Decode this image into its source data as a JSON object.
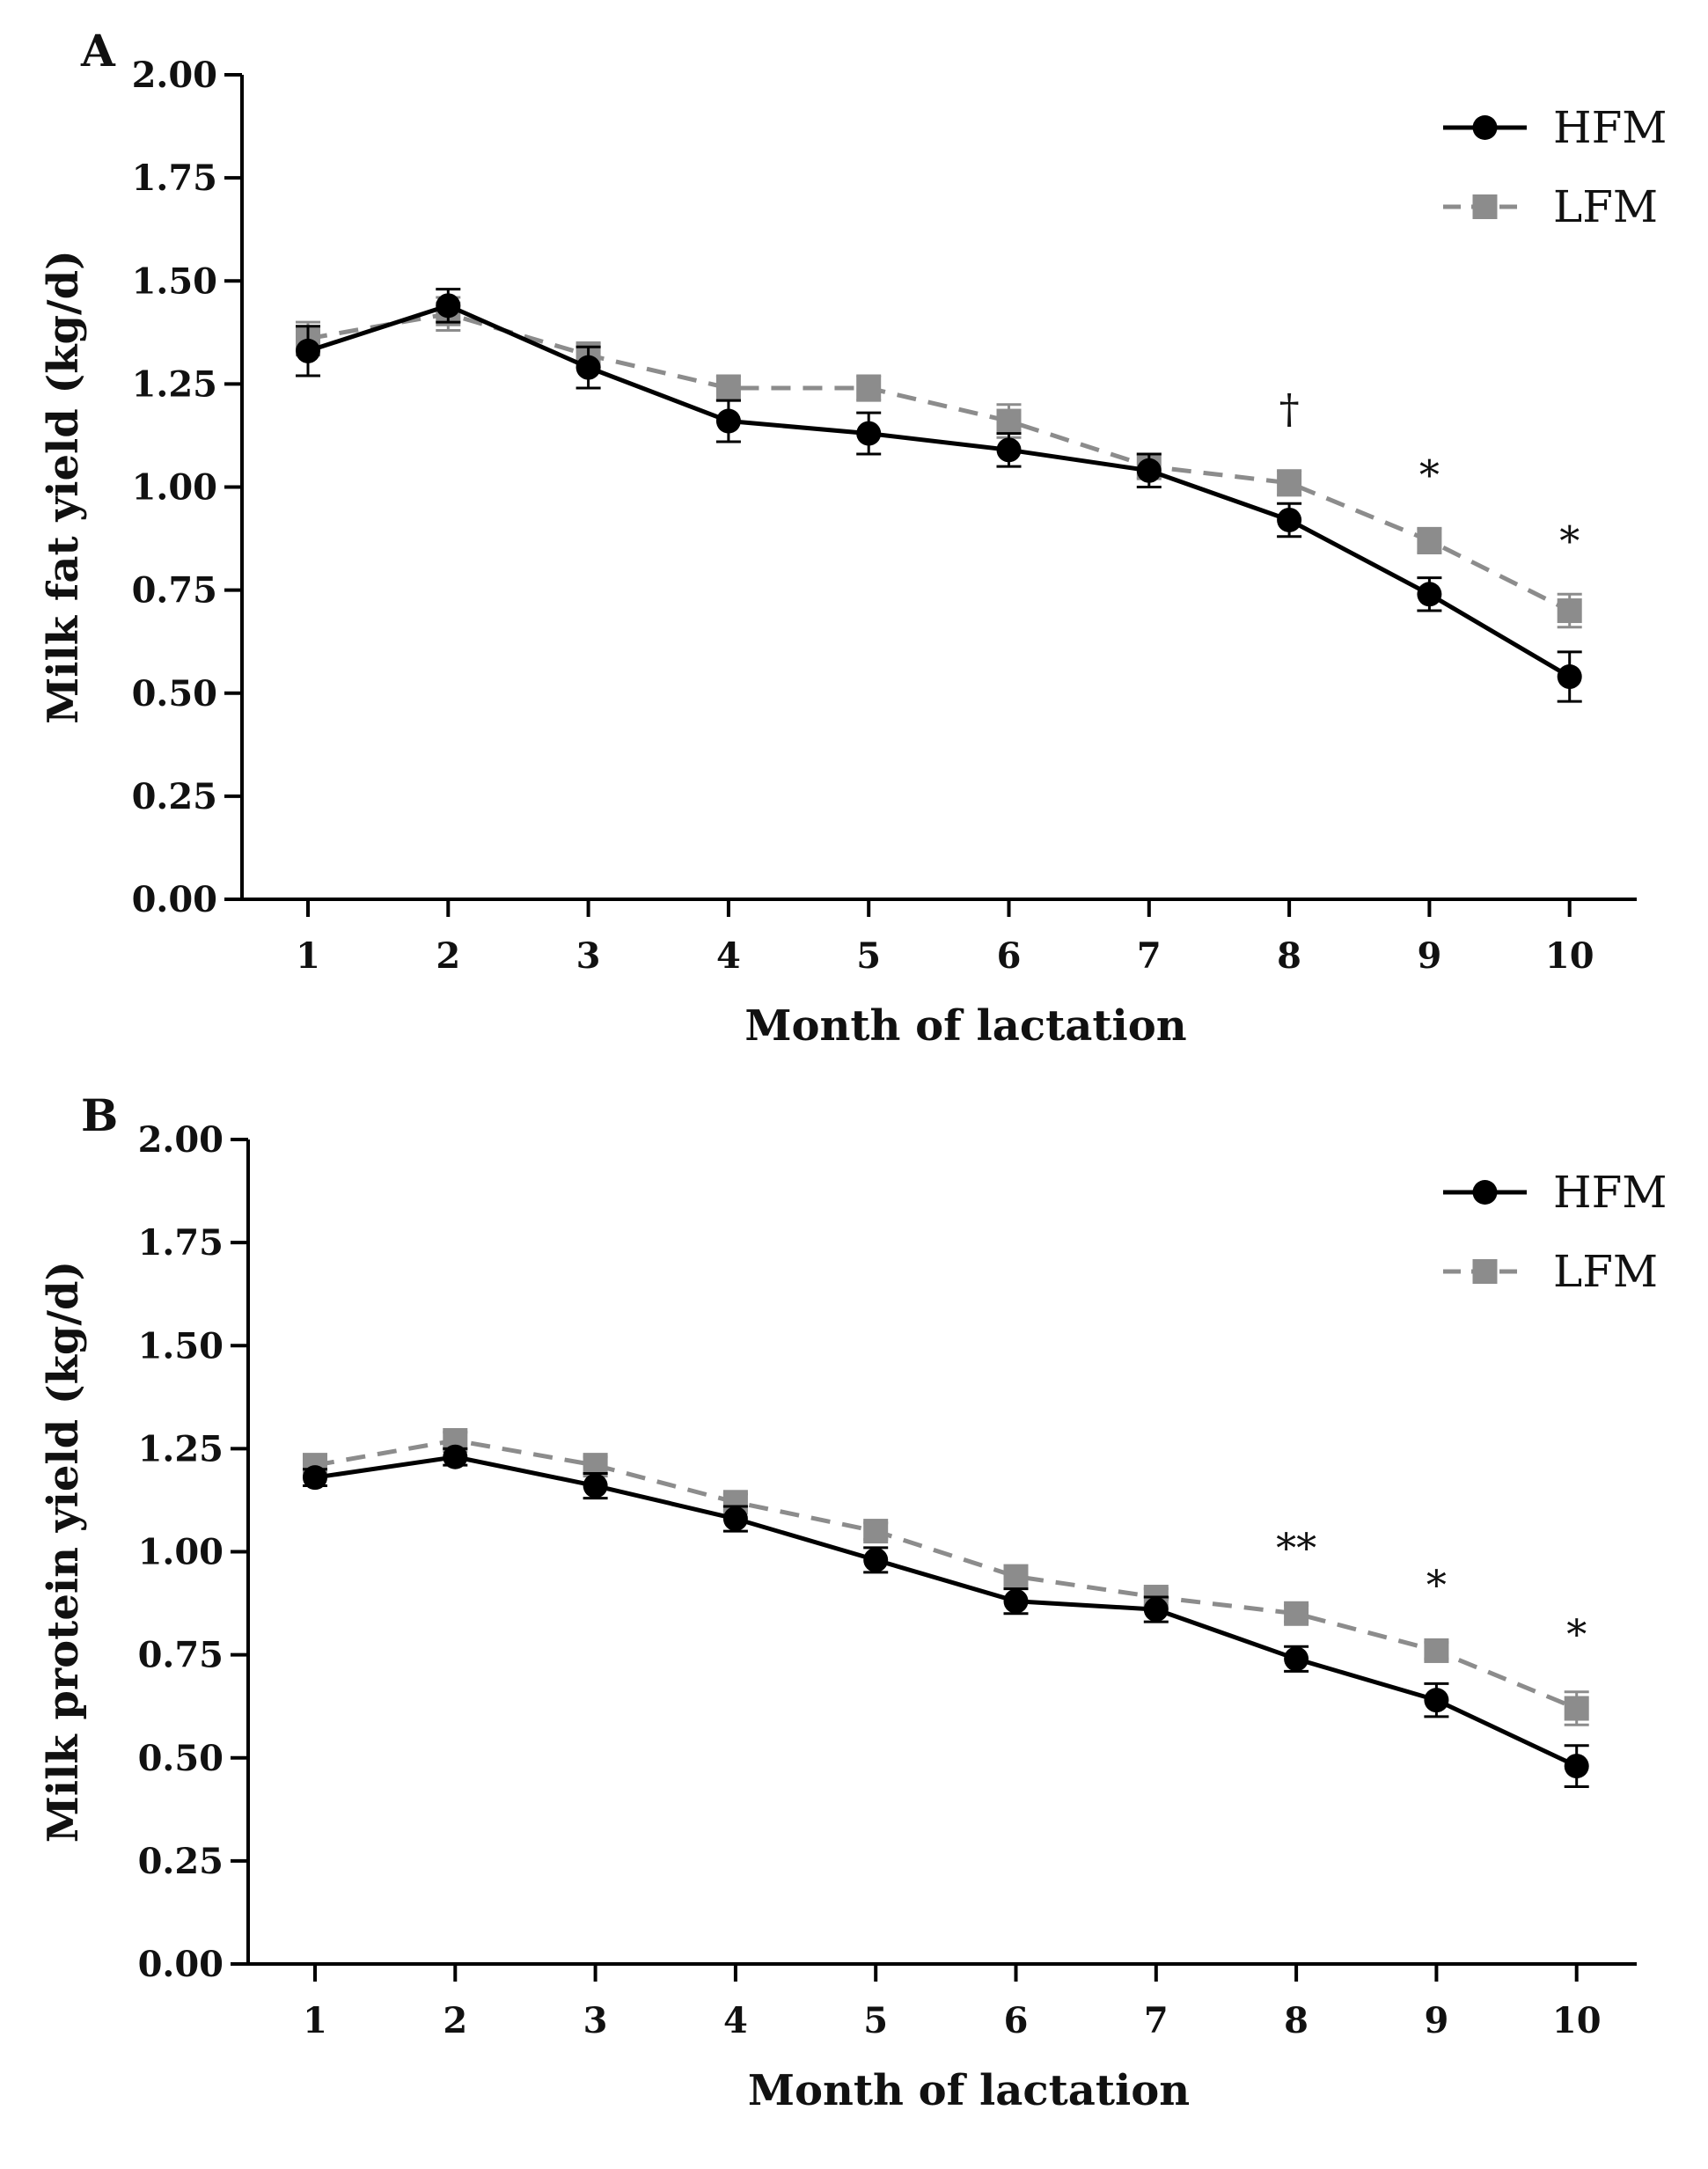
{
  "chart_data": [
    {
      "type": "line",
      "panel_label": "A",
      "xlabel": "Month of lactation",
      "ylabel": "Milk fat yield (kg/d)",
      "categories": [
        "1",
        "2",
        "3",
        "4",
        "5",
        "6",
        "7",
        "8",
        "9",
        "10"
      ],
      "x": [
        1,
        2,
        3,
        4,
        5,
        6,
        7,
        8,
        9,
        10
      ],
      "ylim": [
        0,
        2
      ],
      "yticks": [
        0,
        0.25,
        0.5,
        0.75,
        1.0,
        1.25,
        1.5,
        1.75,
        2.0
      ],
      "ytick_labels": [
        "0.00",
        "0.25",
        "0.50",
        "0.75",
        "1.00",
        "1.25",
        "1.50",
        "1.75",
        "2.00"
      ],
      "legend_position": "top-right",
      "series": [
        {
          "name": "HFM",
          "color": "#000000",
          "line_style": "solid",
          "marker": "circle",
          "values": [
            1.33,
            1.44,
            1.29,
            1.16,
            1.13,
            1.09,
            1.04,
            0.92,
            0.74,
            0.54
          ],
          "errors": [
            0.06,
            0.04,
            0.05,
            0.05,
            0.05,
            0.04,
            0.04,
            0.04,
            0.04,
            0.06
          ]
        },
        {
          "name": "LFM",
          "color": "#8c8c8c",
          "line_style": "dashed",
          "marker": "square",
          "values": [
            1.36,
            1.42,
            1.32,
            1.24,
            1.24,
            1.16,
            1.05,
            1.01,
            0.87,
            0.7
          ],
          "errors": [
            0.04,
            0.04,
            0.03,
            0.03,
            0.03,
            0.04,
            0.03,
            0.03,
            0.03,
            0.04
          ]
        }
      ],
      "annotations": [
        {
          "x": 8,
          "y": 1.19,
          "text": "†"
        },
        {
          "x": 9,
          "y": 1.03,
          "text": "*"
        },
        {
          "x": 10,
          "y": 0.87,
          "text": "*"
        }
      ]
    },
    {
      "type": "line",
      "panel_label": "B",
      "xlabel": "Month of lactation",
      "ylabel": "Milk protein yield (kg/d)",
      "categories": [
        "1",
        "2",
        "3",
        "4",
        "5",
        "6",
        "7",
        "8",
        "9",
        "10"
      ],
      "x": [
        1,
        2,
        3,
        4,
        5,
        6,
        7,
        8,
        9,
        10
      ],
      "ylim": [
        0,
        2
      ],
      "yticks": [
        0,
        0.25,
        0.5,
        0.75,
        1.0,
        1.25,
        1.5,
        1.75,
        2.0
      ],
      "ytick_labels": [
        "0.00",
        "0.25",
        "0.50",
        "0.75",
        "1.00",
        "1.25",
        "1.50",
        "1.75",
        "2.00"
      ],
      "legend_position": "top-right",
      "series": [
        {
          "name": "HFM",
          "color": "#000000",
          "line_style": "solid",
          "marker": "circle",
          "values": [
            1.18,
            1.23,
            1.16,
            1.08,
            0.98,
            0.88,
            0.86,
            0.74,
            0.64,
            0.48
          ],
          "errors": [
            0.02,
            0.02,
            0.03,
            0.03,
            0.03,
            0.03,
            0.03,
            0.03,
            0.04,
            0.05
          ]
        },
        {
          "name": "LFM",
          "color": "#8c8c8c",
          "line_style": "dashed",
          "marker": "square",
          "values": [
            1.21,
            1.27,
            1.21,
            1.12,
            1.05,
            0.94,
            0.89,
            0.85,
            0.76,
            0.62
          ],
          "errors": [
            0.02,
            0.02,
            0.02,
            0.02,
            0.02,
            0.02,
            0.02,
            0.02,
            0.02,
            0.04
          ]
        }
      ],
      "annotations": [
        {
          "x": 8,
          "y": 1.01,
          "text": "**"
        },
        {
          "x": 9,
          "y": 0.92,
          "text": "*"
        },
        {
          "x": 10,
          "y": 0.8,
          "text": "*"
        }
      ]
    }
  ]
}
